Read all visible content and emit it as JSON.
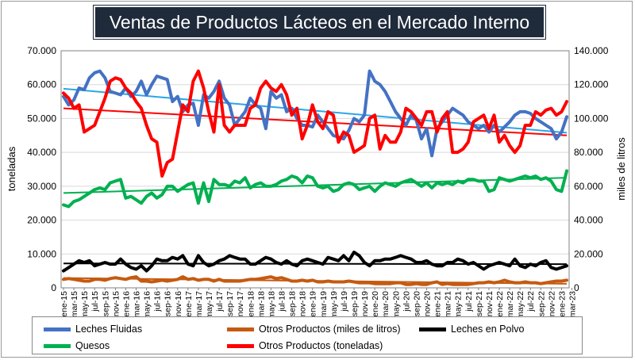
{
  "chart_data": {
    "type": "line",
    "title": "Ventas de Productos Lácteos en el Mercado Interno",
    "ylabel_left": "toneladas",
    "ylabel_right": "miles de litros",
    "ylim_left": [
      0,
      70000
    ],
    "ylim_right": [
      0,
      140000
    ],
    "yticks_left": [
      "0",
      "10.000",
      "20.000",
      "30.000",
      "40.000",
      "50.000",
      "60.000",
      "70.000"
    ],
    "yticks_right": [
      "0",
      "20.000",
      "40.000",
      "60.000",
      "80.000",
      "100.000",
      "120.000",
      "140.000"
    ],
    "x_tick_labels": [
      "ene-15",
      "mar-15",
      "may-15",
      "jul-15",
      "sep-15",
      "nov-15",
      "ene-16",
      "mar-16",
      "may-16",
      "jul-16",
      "sep-16",
      "nov-16",
      "ene-17",
      "mar-17",
      "may-17",
      "jul-17",
      "sep-17",
      "nov-17",
      "ene-18",
      "mar-18",
      "may-18",
      "jul-18",
      "sep-18",
      "nov-18",
      "ene-19",
      "mar-19",
      "may-19",
      "jul-19",
      "sep-19",
      "nov-19",
      "ene-20",
      "mar-20",
      "may-20",
      "jul-20",
      "sep-20",
      "nov-20",
      "ene-21",
      "mar-21",
      "may-21",
      "jul-21",
      "sep-21",
      "nov-21",
      "ene-22",
      "mar-22",
      "may-22",
      "jul-22",
      "sep-22",
      "nov-22",
      "ene-23",
      "mar-23"
    ],
    "grid": true,
    "legend_position": "bottom",
    "series": [
      {
        "name": "Leches Fluidas",
        "axis": "left",
        "color": "#4472c4",
        "trend": [
          58800,
          45800
        ],
        "values": [
          56500,
          54000,
          55500,
          59000,
          58500,
          62000,
          63500,
          64000,
          62000,
          58000,
          57500,
          57000,
          59000,
          56500,
          58000,
          61000,
          57000,
          60000,
          62500,
          62000,
          61500,
          55000,
          56500,
          52000,
          54000,
          54500,
          48000,
          57000,
          56000,
          58000,
          61000,
          56000,
          54000,
          48000,
          50000,
          52000,
          56000,
          54000,
          53000,
          47000,
          58000,
          56000,
          57000,
          52000,
          53000,
          50000,
          48000,
          48000,
          47500,
          51000,
          49000,
          47000,
          45000,
          44500,
          44000,
          46500,
          50000,
          49000,
          51000,
          64000,
          61000,
          60000,
          58000,
          55000,
          52000,
          50000,
          48000,
          51000,
          49500,
          44000,
          47000,
          39000,
          47000,
          49000,
          51000,
          53000,
          52000,
          51000,
          49000,
          48000,
          47000,
          48000,
          46000,
          48000,
          46000,
          47500,
          49000,
          51000,
          52000,
          52000,
          51500,
          50000,
          49000,
          48000,
          47000,
          44000,
          46000,
          50500
        ]
      },
      {
        "name": "Otros Productos (toneladas)",
        "axis": "right",
        "color": "#ff0000",
        "trend": [
          106000,
          90000
        ],
        "values": [
          115000,
          112000,
          106000,
          108000,
          92000,
          94000,
          96000,
          104000,
          112000,
          122000,
          124000,
          123000,
          118000,
          115000,
          110000,
          106000,
          96000,
          88000,
          86000,
          66000,
          74000,
          76000,
          92000,
          108000,
          104000,
          122000,
          128000,
          118000,
          104000,
          92000,
          120000,
          96000,
          92000,
          96000,
          96000,
          96000,
          106000,
          108000,
          118000,
          122000,
          118000,
          116000,
          120000,
          114000,
          102000,
          106000,
          88000,
          96000,
          108000,
          98000,
          94000,
          104000,
          102000,
          86000,
          92000,
          90000,
          80000,
          82000,
          84000,
          100000,
          102000,
          82000,
          90000,
          86000,
          86000,
          92000,
          106000,
          104000,
          100000,
          96000,
          104000,
          104000,
          92000,
          100000,
          104000,
          80000,
          80000,
          82000,
          86000,
          98000,
          100000,
          102000,
          94000,
          102000,
          86000,
          90000,
          84000,
          80000,
          84000,
          96000,
          96000,
          104000,
          102000,
          105000,
          106000,
          102000,
          104000,
          110000
        ]
      },
      {
        "name": "Quesos",
        "axis": "left",
        "color": "#00b050",
        "trend": [
          28000,
          32500
        ],
        "values": [
          24500,
          24000,
          25500,
          26000,
          27000,
          28000,
          29000,
          29500,
          29000,
          31000,
          31500,
          32000,
          26500,
          27000,
          26000,
          25000,
          27000,
          28000,
          26500,
          27500,
          30000,
          30000,
          28500,
          29500,
          30500,
          31000,
          25000,
          31000,
          25500,
          32000,
          30500,
          30500,
          30000,
          31500,
          31000,
          32500,
          29500,
          30500,
          31000,
          30000,
          30000,
          30500,
          31500,
          32000,
          33000,
          32500,
          31000,
          33000,
          32500,
          30000,
          29500,
          30000,
          28500,
          29000,
          30500,
          31000,
          30500,
          29000,
          29500,
          30000,
          28500,
          30000,
          31000,
          30500,
          30000,
          31000,
          31500,
          32000,
          31000,
          30000,
          31000,
          29500,
          31000,
          30500,
          31000,
          30500,
          31500,
          31000,
          32000,
          32000,
          31500,
          31500,
          28500,
          29000,
          32500,
          32000,
          31500,
          32000,
          32500,
          33000,
          32500,
          33000,
          32000,
          32500,
          31500,
          29000,
          28500,
          34500
        ]
      },
      {
        "name": "Leches en Polvo",
        "axis": "left",
        "color": "#000000",
        "trend": [
          7200,
          7000
        ],
        "values": [
          5000,
          6000,
          7000,
          8000,
          7500,
          8000,
          6500,
          7000,
          7500,
          7000,
          7000,
          8500,
          7000,
          6000,
          5500,
          6500,
          5000,
          6500,
          8500,
          8000,
          8000,
          9000,
          8500,
          9500,
          7000,
          6500,
          9500,
          7500,
          6500,
          7000,
          8000,
          8500,
          9500,
          9000,
          8500,
          8500,
          7000,
          7000,
          8000,
          9000,
          8500,
          7500,
          7000,
          8000,
          7000,
          6500,
          8000,
          8500,
          8000,
          7500,
          7000,
          9000,
          8500,
          8000,
          9500,
          8000,
          10500,
          9500,
          7500,
          6500,
          8000,
          8000,
          8500,
          8500,
          9000,
          9500,
          9000,
          8500,
          7500,
          7500,
          8000,
          7000,
          6500,
          6500,
          7500,
          7500,
          8500,
          8000,
          7000,
          7500,
          6500,
          5500,
          6500,
          7000,
          7500,
          7000,
          6500,
          8500,
          6500,
          6000,
          7000,
          6500,
          7500,
          8000,
          6000,
          5500,
          6000,
          6500
        ]
      },
      {
        "name": "Otros Productos (miles de litros)",
        "axis": "right",
        "color": "#c55a11",
        "trend": [
          5800,
          2400
        ],
        "values": [
          5000,
          5500,
          5000,
          4500,
          4000,
          4000,
          5000,
          5000,
          4500,
          5500,
          6000,
          5500,
          5000,
          6000,
          6500,
          4000,
          4000,
          3500,
          4000,
          4500,
          4000,
          4500,
          5000,
          6500,
          5000,
          5500,
          4500,
          5000,
          5000,
          4000,
          5000,
          4000,
          4000,
          4000,
          4000,
          4500,
          5000,
          5000,
          5500,
          6000,
          6500,
          5500,
          6000,
          5000,
          4000,
          4000,
          4500,
          4000,
          4500,
          3500,
          3500,
          4000,
          3500,
          3500,
          3500,
          4000,
          3500,
          3000,
          3000,
          3000,
          2500,
          2500,
          2500,
          2500,
          3000,
          3000,
          2000,
          2000,
          2500,
          2000,
          2000,
          3000,
          3500,
          2000,
          2500,
          2000,
          2000,
          2000,
          2000,
          2500,
          3000,
          3000,
          3500,
          3000,
          3500,
          4500,
          3500,
          3000,
          3000,
          3500,
          3000,
          3000,
          2500,
          3000,
          3500,
          4000,
          4000,
          4500
        ]
      }
    ]
  }
}
